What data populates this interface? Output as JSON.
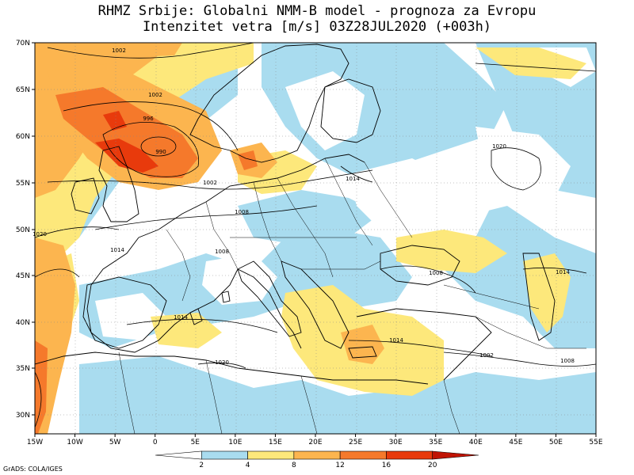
{
  "title_line1": "RHMZ Srbije: Globalni NMM-B model - prognoza za Evropu",
  "title_line2": "Intenzitet vetra [m/s] 03Z28JUL2020 (+003h)",
  "lat_ticks": [
    "70N",
    "65N",
    "60N",
    "55N",
    "50N",
    "45N",
    "40N",
    "35N",
    "30N"
  ],
  "lon_ticks": [
    "15W",
    "10W",
    "5W",
    "0",
    "5E",
    "10E",
    "15E",
    "20E",
    "25E",
    "30E",
    "35E",
    "40E",
    "45E",
    "50E",
    "55E"
  ],
  "isobar_labels": [
    "1002",
    "1002",
    "996",
    "990",
    "1002",
    "1008",
    "1014",
    "1020",
    "1008",
    "1014",
    "1014",
    "1014",
    "1008",
    "1002",
    "1008",
    "1020",
    "1014",
    "1020"
  ],
  "colorbar": {
    "labels": [
      "2",
      "4",
      "8",
      "12",
      "16",
      "20"
    ],
    "colors": [
      "#ffffff",
      "#a9dcef",
      "#fde87b",
      "#fcb54f",
      "#f5792b",
      "#e83a0c",
      "#c01404"
    ]
  },
  "credit": "GrADS: COLA/IGES"
}
